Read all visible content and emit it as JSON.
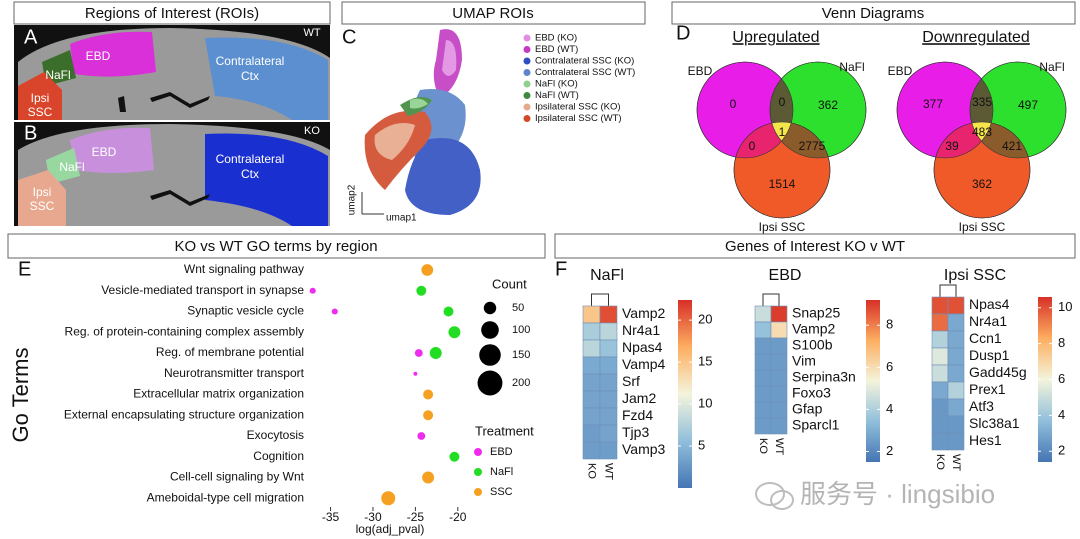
{
  "panel_labels": [
    "A",
    "B",
    "C",
    "D",
    "E",
    "F"
  ],
  "rois": {
    "title": "Regions of Interest (ROIs)",
    "wt": {
      "tag": "WT",
      "ebd": "EBD",
      "nafl": "NaFl",
      "ipsi": [
        "Ipsi",
        "SSC"
      ],
      "contra": [
        "Contralateral",
        "Ctx"
      ]
    },
    "ko": {
      "tag": "KO",
      "ebd": "EBD",
      "nafl": "NaFl",
      "ipsi": [
        "Ipsi",
        "SSC"
      ],
      "contra": [
        "Contralateral",
        "Ctx"
      ]
    }
  },
  "umap": {
    "title": "UMAP ROIs",
    "x_label": "umap1",
    "y_label": "umap2",
    "legend": [
      {
        "name": "EBD (KO)",
        "color": "#e08ee0"
      },
      {
        "name": "EBD (WT)",
        "color": "#c23bc2"
      },
      {
        "name": "Contralateral SSC (KO)",
        "color": "#2e4fbf"
      },
      {
        "name": "Contralateral SSC (WT)",
        "color": "#5b87c9"
      },
      {
        "name": "NaFl (KO)",
        "color": "#8fd08f"
      },
      {
        "name": "NaFl (WT)",
        "color": "#3f8a3f"
      },
      {
        "name": "Ipsilateral SSC (KO)",
        "color": "#e8a88a"
      },
      {
        "name": "Ipsilateral SSC (WT)",
        "color": "#d04a2a"
      }
    ]
  },
  "venn": {
    "title": "Venn Diagrams",
    "diagrams": [
      {
        "title": "Upregulated",
        "labels": {
          "ebd": "EBD",
          "nafl": "NaFl",
          "ssc": "Ipsi SSC"
        },
        "counts": {
          "ebd": 0,
          "ebd_nafl": 0,
          "nafl": 362,
          "all": 1,
          "ebd_ssc": 0,
          "nafl_ssc": 2775,
          "ssc": 1514
        }
      },
      {
        "title": "Downregulated",
        "labels": {
          "ebd": "EBD",
          "nafl": "NaFl",
          "ssc": "Ipsi SSC"
        },
        "counts": {
          "ebd": 377,
          "ebd_nafl": 335,
          "nafl": 497,
          "all": 483,
          "ebd_ssc": 39,
          "nafl_ssc": 421,
          "ssc": 362
        }
      }
    ]
  },
  "genes_title": "Genes of Interest KO v WT",
  "colormap": [
    "#4575b4",
    "#91bfdb",
    "#f4f4dc",
    "#fdae61",
    "#d73027"
  ],
  "watermark": "服务号 · lingsibio",
  "chart_data": [
    {
      "type": "dotplot",
      "title": "KO vs WT GO terms by region",
      "x_label": "log(adj_pval)",
      "y_label": "Go Terms",
      "categories": [
        "Wnt signaling pathway",
        "Vesicle-mediated transport in synapse",
        "Synaptic vesicle cycle",
        "Reg. of protein-containing complex assembly",
        "Reg. of membrane potential",
        "Neurotransmitter transport",
        "Extracellular matrix organization",
        "External encapsulating structure organization",
        "Exocytosis",
        "Cognition",
        "Cell-cell signaling by Wnt",
        "Ameboidal-type cell migration"
      ],
      "xlim": [
        -38.6,
        -18.8
      ],
      "xticks": [
        -35,
        -30,
        -25,
        -20
      ],
      "size_title": "Count",
      "size_legend": [
        50,
        100,
        150,
        200
      ],
      "legend_title": "Treatment",
      "series": [
        {
          "name": "EBD",
          "color": "#ee2cee",
          "values": [
            null,
            -37.1,
            -34.5,
            null,
            -24.6,
            -25.0,
            null,
            null,
            -24.3,
            null,
            null,
            null
          ],
          "sizes": [
            null,
            12,
            12,
            null,
            20,
            5,
            null,
            null,
            20,
            null,
            null,
            null
          ]
        },
        {
          "name": "NaFl",
          "color": "#22dd22",
          "values": [
            null,
            -24.3,
            -21.1,
            -20.4,
            -22.6,
            null,
            null,
            null,
            null,
            -20.4,
            null,
            null
          ],
          "sizes": [
            null,
            32,
            32,
            46,
            46,
            null,
            null,
            null,
            null,
            32,
            null,
            null
          ]
        },
        {
          "name": "SSC",
          "color": "#f5a020",
          "values": [
            -23.6,
            null,
            null,
            null,
            null,
            null,
            -23.5,
            -23.5,
            null,
            null,
            -23.5,
            -28.2
          ],
          "sizes": [
            45,
            null,
            null,
            null,
            null,
            null,
            32,
            32,
            null,
            null,
            46,
            63
          ]
        }
      ]
    },
    {
      "type": "heatmap",
      "title": "NaFl",
      "columns": [
        "KO",
        "WT"
      ],
      "rows": [
        "Vamp2",
        "Nr4a1",
        "Npas4",
        "Vamp4",
        "Srf",
        "Jam2",
        "Fzd4",
        "Tjp3",
        "Vamp3"
      ],
      "values": [
        [
          15,
          21
        ],
        [
          7,
          8
        ],
        [
          8,
          6
        ],
        [
          4,
          4
        ],
        [
          3.5,
          3.5
        ],
        [
          3.5,
          3.5
        ],
        [
          3.5,
          3.5
        ],
        [
          3,
          3.5
        ],
        [
          3,
          3
        ]
      ],
      "clim": [
        0,
        22.4
      ],
      "cticks": [
        5,
        10,
        15,
        20
      ]
    },
    {
      "type": "heatmap",
      "title": "EBD",
      "columns": [
        "KO",
        "WT"
      ],
      "rows": [
        "Snap25",
        "Vamp2",
        "S100b",
        "Vim",
        "Serpina3n",
        "Foxo3",
        "Gfap",
        "Sparcl1"
      ],
      "values": [
        [
          4.5,
          9
        ],
        [
          3.5,
          6
        ],
        [
          2.5,
          2.5
        ],
        [
          2.5,
          2.5
        ],
        [
          2.5,
          2.5
        ],
        [
          2.5,
          2.5
        ],
        [
          2.5,
          2.5
        ],
        [
          2.5,
          2.5
        ]
      ],
      "clim": [
        1.5,
        9.2
      ],
      "cticks": [
        2,
        4,
        6,
        8
      ]
    },
    {
      "type": "heatmap",
      "title": "Ipsi SSC",
      "columns": [
        "KO",
        "WT"
      ],
      "rows": [
        "Npas4",
        "Nr4a1",
        "Ccn1",
        "Dusp1",
        "Gadd45g",
        "Prex1",
        "Atf3",
        "Slc38a1",
        "Hes1"
      ],
      "values": [
        [
          10,
          10
        ],
        [
          9.5,
          3
        ],
        [
          4.5,
          3
        ],
        [
          5.5,
          3
        ],
        [
          5,
          3
        ],
        [
          3,
          4.5
        ],
        [
          2.5,
          3
        ],
        [
          2.5,
          2.5
        ],
        [
          2.5,
          2.5
        ]
      ],
      "clim": [
        1.4,
        10.6
      ],
      "cticks": [
        2,
        4,
        6,
        8,
        10
      ]
    }
  ]
}
